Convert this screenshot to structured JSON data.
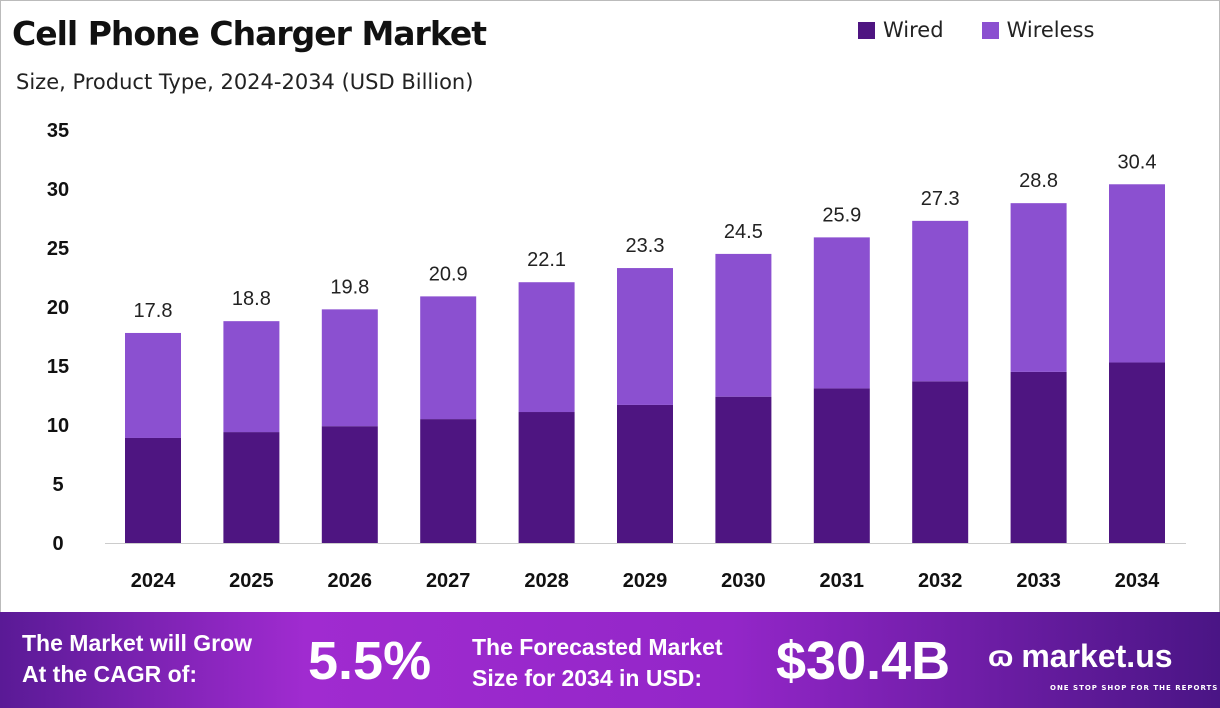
{
  "chart_data": {
    "type": "bar",
    "stacked": true,
    "title": "Cell Phone Charger Market",
    "subtitle": "Size, Product Type, 2024-2034 (USD Billion)",
    "categories": [
      "2024",
      "2025",
      "2026",
      "2027",
      "2028",
      "2029",
      "2030",
      "2031",
      "2032",
      "2033",
      "2034"
    ],
    "series": [
      {
        "name": "Wired",
        "color": "#4e1581",
        "values": [
          8.9,
          9.4,
          9.9,
          10.5,
          11.1,
          11.7,
          12.4,
          13.1,
          13.7,
          14.5,
          15.3
        ]
      },
      {
        "name": "Wireless",
        "color": "#8b50d0",
        "values": [
          8.9,
          9.4,
          9.9,
          10.4,
          11.0,
          11.6,
          12.1,
          12.8,
          13.6,
          14.3,
          15.1
        ]
      }
    ],
    "totals": [
      "17.8",
      "18.8",
      "19.8",
      "20.9",
      "22.1",
      "23.3",
      "24.5",
      "25.9",
      "27.3",
      "28.8",
      "30.4"
    ],
    "ylim": [
      0,
      35
    ],
    "yticks": [
      "0",
      "5",
      "10",
      "15",
      "20",
      "25",
      "30",
      "35"
    ],
    "grid": false,
    "legend_position": "top-right"
  },
  "banner": {
    "cagr_label_1": "The Market will Grow",
    "cagr_label_2": "At the CAGR of:",
    "cagr_value": "5.5%",
    "forecast_label_1": "The Forecasted Market",
    "forecast_label_2": "Size for 2034 in USD:",
    "forecast_value": "$30.4B",
    "logo_text": "market.us",
    "logo_tagline": "ONE STOP SHOP FOR THE REPORTS"
  }
}
